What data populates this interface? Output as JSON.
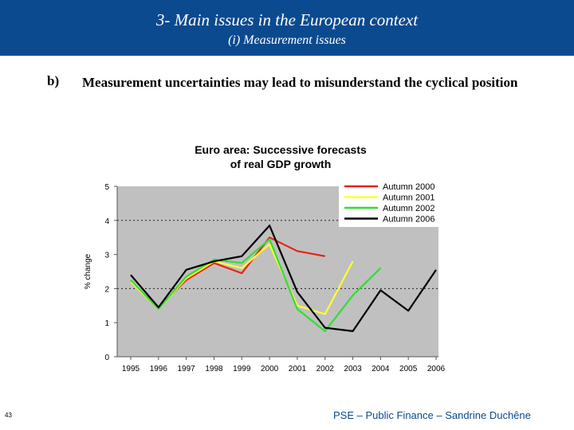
{
  "header": {
    "title": "3- Main issues in the European context",
    "subtitle": "(i) Measurement issues"
  },
  "point": {
    "letter": "b)",
    "text": "Measurement uncertainties may lead to misunderstand the cyclical position"
  },
  "footer": {
    "page_number": "43",
    "text": "PSE – Public Finance – Sandrine Duchêne"
  },
  "chart_data": {
    "type": "line",
    "title": "Euro area: Successive forecasts of real GDP growth",
    "title_lines": [
      "Euro area: Successive forecasts",
      "of real GDP growth"
    ],
    "xlabel": "",
    "ylabel": "% change",
    "ylim": [
      0,
      5
    ],
    "yticks": [
      "0",
      "1",
      "2",
      "3",
      "4",
      "5"
    ],
    "categories": [
      "1995",
      "1996",
      "1997",
      "1998",
      "1999",
      "2000",
      "2001",
      "2002",
      "2003",
      "2004",
      "2005",
      "2006"
    ],
    "grid": "dotted horizontal at 2 and 4",
    "legend_position": "top-right",
    "plot_background": "#c0c0c0",
    "series": [
      {
        "name": "Autumn 2000",
        "color": "#e8201c",
        "x": [
          1995,
          1996,
          1997,
          1998,
          1999,
          2000,
          2001,
          2002
        ],
        "values": [
          2.2,
          1.45,
          2.25,
          2.75,
          2.45,
          3.5,
          3.1,
          2.95
        ]
      },
      {
        "name": "Autumn 2001",
        "color": "#ffff33",
        "x": [
          1995,
          1996,
          1997,
          1998,
          1999,
          2000,
          2001,
          2002,
          2003
        ],
        "values": [
          2.2,
          1.4,
          2.3,
          2.8,
          2.6,
          3.3,
          1.5,
          1.25,
          2.8
        ]
      },
      {
        "name": "Autumn 2002",
        "color": "#33dd33",
        "x": [
          1995,
          1996,
          1997,
          1998,
          1999,
          2000,
          2001,
          2002,
          2003,
          2004
        ],
        "values": [
          2.25,
          1.4,
          2.35,
          2.85,
          2.75,
          3.45,
          1.4,
          0.75,
          1.8,
          2.6
        ]
      },
      {
        "name": "Autumn 2006",
        "color": "#000000",
        "x": [
          1995,
          1996,
          1997,
          1998,
          1999,
          2000,
          2001,
          2002,
          2003,
          2004,
          2005,
          2006
        ],
        "values": [
          2.4,
          1.45,
          2.55,
          2.8,
          2.95,
          3.85,
          1.9,
          0.85,
          0.75,
          1.95,
          1.35,
          2.55
        ]
      }
    ]
  }
}
